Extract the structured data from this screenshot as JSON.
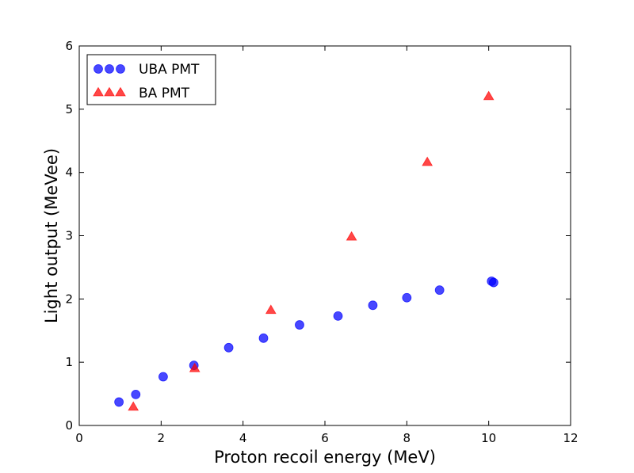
{
  "chart_data": {
    "type": "scatter",
    "title": "",
    "xlabel": "Proton recoil energy (MeV)",
    "ylabel": "Light output (MeVee)",
    "xlim": [
      0,
      12
    ],
    "ylim": [
      0,
      6
    ],
    "xticks": [
      0,
      2,
      4,
      6,
      8,
      10,
      12
    ],
    "yticks": [
      0,
      1,
      2,
      3,
      4,
      5,
      6
    ],
    "grid": false,
    "legend_position": "top-left",
    "series": [
      {
        "name": "UBA PMT",
        "marker": "circle",
        "color": "#0000ff",
        "points": [
          {
            "x": 0.97,
            "y": 0.37
          },
          {
            "x": 1.38,
            "y": 0.49
          },
          {
            "x": 2.05,
            "y": 0.77
          },
          {
            "x": 2.8,
            "y": 0.95
          },
          {
            "x": 3.65,
            "y": 1.23
          },
          {
            "x": 4.5,
            "y": 1.38
          },
          {
            "x": 5.38,
            "y": 1.59
          },
          {
            "x": 6.32,
            "y": 1.73
          },
          {
            "x": 7.17,
            "y": 1.9
          },
          {
            "x": 8.0,
            "y": 2.02
          },
          {
            "x": 8.8,
            "y": 2.14
          },
          {
            "x": 10.07,
            "y": 2.28
          },
          {
            "x": 10.12,
            "y": 2.26
          }
        ]
      },
      {
        "name": "BA PMT",
        "marker": "triangle",
        "color": "#ff0000",
        "points": [
          {
            "x": 1.32,
            "y": 0.29
          },
          {
            "x": 2.82,
            "y": 0.9
          },
          {
            "x": 4.68,
            "y": 1.82
          },
          {
            "x": 6.65,
            "y": 2.98
          },
          {
            "x": 8.5,
            "y": 4.16
          },
          {
            "x": 10.0,
            "y": 5.2
          }
        ]
      }
    ]
  }
}
